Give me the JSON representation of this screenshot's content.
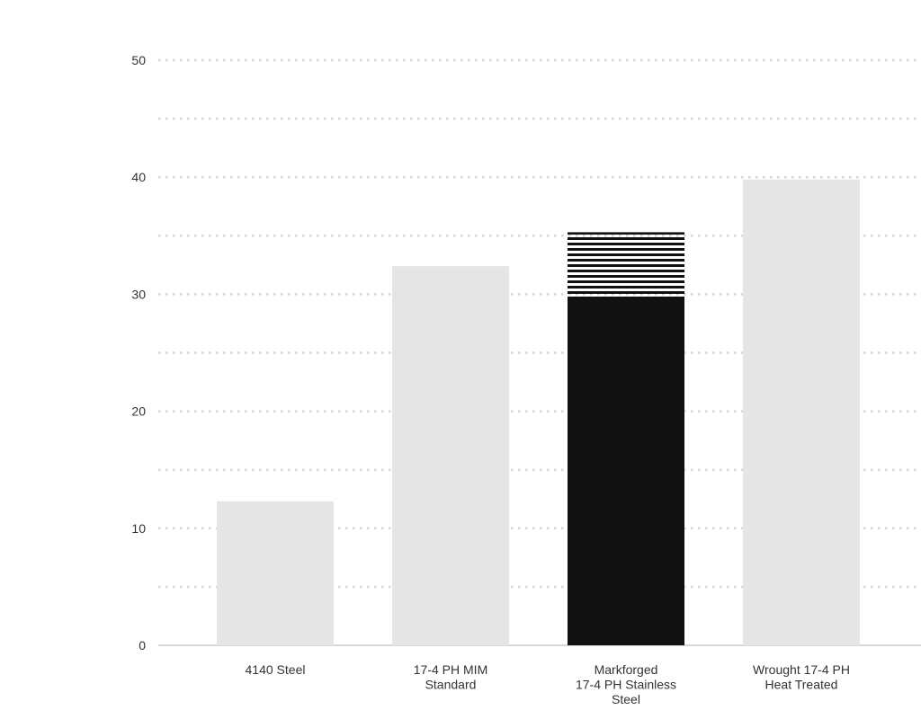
{
  "chart_data": {
    "type": "bar",
    "title": "",
    "xlabel": "",
    "ylabel": "",
    "ylim": [
      0,
      50
    ],
    "y_ticks": [
      0,
      10,
      20,
      30,
      40,
      50
    ],
    "minor_grid": [
      5,
      15,
      25,
      35,
      45
    ],
    "grid": "dotted horizontal",
    "categories": [
      [
        "4140 Steel"
      ],
      [
        "17-4 PH MIM",
        "Standard"
      ],
      [
        "Markforged",
        "17-4 PH Stainless",
        "Steel"
      ],
      [
        "Wrought 17-4 PH",
        "Heat Treated"
      ]
    ],
    "series": [
      {
        "values": [
          12.3,
          32.4,
          29.8,
          39.8
        ]
      },
      {
        "values": [
          0,
          0,
          5.5,
          0
        ]
      }
    ],
    "highlight_index": 2,
    "colors": {
      "bar": "#e5e5e5",
      "highlight": "#111111",
      "range_stripe": "#111111",
      "grid": "#d6d6d6",
      "axis": "#cccccc",
      "text": "#333333"
    }
  }
}
